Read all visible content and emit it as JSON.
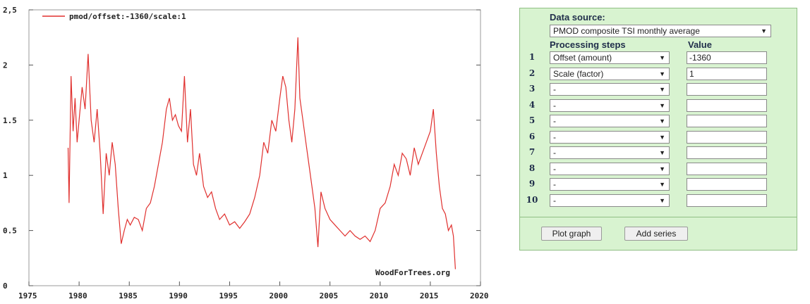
{
  "chart_data": {
    "type": "line",
    "series": [
      {
        "name": "pmod/offset:-1360/scale:1",
        "x": [
          1978.9,
          1979.0,
          1979.2,
          1979.4,
          1979.6,
          1979.8,
          1980.0,
          1980.3,
          1980.6,
          1980.9,
          1981.2,
          1981.5,
          1981.8,
          1982.1,
          1982.4,
          1982.7,
          1983.0,
          1983.3,
          1983.6,
          1983.9,
          1984.2,
          1984.5,
          1984.8,
          1985.1,
          1985.5,
          1985.9,
          1986.3,
          1986.7,
          1987.1,
          1987.5,
          1987.9,
          1988.3,
          1988.7,
          1989.0,
          1989.3,
          1989.6,
          1989.9,
          1990.2,
          1990.5,
          1990.8,
          1991.1,
          1991.4,
          1991.7,
          1992.0,
          1992.4,
          1992.8,
          1993.2,
          1993.6,
          1994.0,
          1994.5,
          1995.0,
          1995.5,
          1996.0,
          1996.5,
          1997.0,
          1997.5,
          1998.0,
          1998.4,
          1998.8,
          1999.2,
          1999.6,
          2000.0,
          2000.3,
          2000.6,
          2000.9,
          2001.2,
          2001.5,
          2001.8,
          2002.0,
          2002.3,
          2002.6,
          2002.9,
          2003.2,
          2003.5,
          2003.8,
          2004.1,
          2004.5,
          2005.0,
          2005.5,
          2006.0,
          2006.5,
          2007.0,
          2007.5,
          2008.0,
          2008.5,
          2009.0,
          2009.5,
          2010.0,
          2010.5,
          2011.0,
          2011.4,
          2011.8,
          2012.2,
          2012.6,
          2013.0,
          2013.4,
          2013.8,
          2014.2,
          2014.6,
          2015.0,
          2015.3,
          2015.6,
          2015.9,
          2016.2,
          2016.5,
          2016.8,
          2017.1,
          2017.3,
          2017.5
        ],
        "y": [
          1.25,
          0.75,
          1.9,
          1.4,
          1.7,
          1.3,
          1.5,
          1.8,
          1.6,
          2.1,
          1.5,
          1.3,
          1.6,
          1.2,
          0.65,
          1.2,
          1.0,
          1.3,
          1.1,
          0.7,
          0.38,
          0.5,
          0.6,
          0.55,
          0.62,
          0.6,
          0.5,
          0.7,
          0.75,
          0.9,
          1.1,
          1.3,
          1.6,
          1.7,
          1.5,
          1.55,
          1.45,
          1.4,
          1.9,
          1.3,
          1.6,
          1.1,
          1.0,
          1.2,
          0.9,
          0.8,
          0.85,
          0.7,
          0.6,
          0.65,
          0.55,
          0.58,
          0.52,
          0.58,
          0.65,
          0.8,
          1.0,
          1.3,
          1.2,
          1.5,
          1.4,
          1.7,
          1.9,
          1.8,
          1.5,
          1.3,
          1.6,
          2.25,
          1.7,
          1.5,
          1.3,
          1.1,
          0.9,
          0.7,
          0.35,
          0.85,
          0.7,
          0.6,
          0.55,
          0.5,
          0.45,
          0.5,
          0.45,
          0.42,
          0.45,
          0.4,
          0.5,
          0.7,
          0.75,
          0.9,
          1.1,
          1.0,
          1.2,
          1.15,
          1.0,
          1.25,
          1.1,
          1.2,
          1.3,
          1.4,
          1.6,
          1.2,
          0.9,
          0.7,
          0.65,
          0.5,
          0.55,
          0.45,
          0.15
        ]
      }
    ],
    "xlim": [
      1975,
      2020
    ],
    "ylim": [
      0,
      2.5
    ],
    "xticks": [
      "1975",
      "1980",
      "1985",
      "1990",
      "1995",
      "2000",
      "2005",
      "2010",
      "2015",
      "2020"
    ],
    "yticks": [
      "0",
      "0.5",
      "1",
      "1.5",
      "2",
      "2,5"
    ],
    "legend": "top-left",
    "grid": false,
    "line_color": "#e0302e",
    "watermark": "WoodForTrees.org"
  },
  "panel": {
    "data_source_label": "Data source:",
    "data_source_value": "PMOD composite TSI monthly average",
    "processing_label": "Processing steps",
    "value_label": "Value",
    "rows": [
      {
        "num": "1",
        "step": "Offset (amount)",
        "value": "-1360"
      },
      {
        "num": "2",
        "step": "Scale (factor)",
        "value": "1"
      },
      {
        "num": "3",
        "step": "-",
        "value": ""
      },
      {
        "num": "4",
        "step": "-",
        "value": ""
      },
      {
        "num": "5",
        "step": "-",
        "value": ""
      },
      {
        "num": "6",
        "step": "-",
        "value": ""
      },
      {
        "num": "7",
        "step": "-",
        "value": ""
      },
      {
        "num": "8",
        "step": "-",
        "value": ""
      },
      {
        "num": "9",
        "step": "-",
        "value": ""
      },
      {
        "num": "10",
        "step": "-",
        "value": ""
      }
    ],
    "plot_button": "Plot graph",
    "add_button": "Add series",
    "caret_icon": "chevron-down-icon"
  }
}
